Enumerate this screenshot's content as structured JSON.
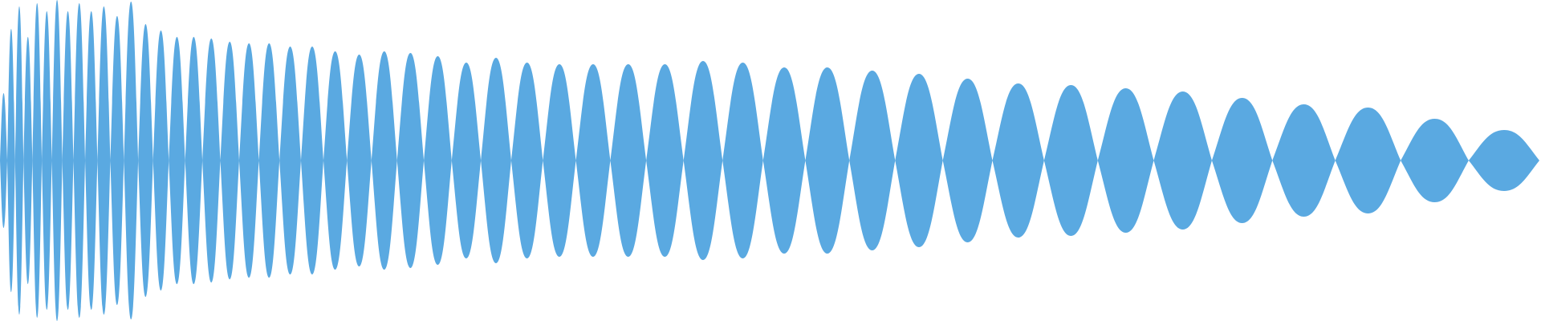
{
  "waveform": {
    "fill_color": "#5aa9e1",
    "background_color": "#ffffff",
    "lobe_count": 51,
    "amplitudes": [
      0.42,
      0.82,
      0.96,
      0.77,
      0.98,
      0.93,
      1.0,
      0.93,
      0.98,
      0.93,
      0.96,
      0.9,
      0.99,
      0.85,
      0.81,
      0.77,
      0.77,
      0.76,
      0.74,
      0.73,
      0.73,
      0.71,
      0.71,
      0.68,
      0.66,
      0.68,
      0.67,
      0.65,
      0.61,
      0.64,
      0.61,
      0.6,
      0.6,
      0.6,
      0.6,
      0.62,
      0.61,
      0.58,
      0.58,
      0.56,
      0.54,
      0.51,
      0.48,
      0.47,
      0.45,
      0.43,
      0.39,
      0.35,
      0.33,
      0.26,
      0.19
    ]
  }
}
